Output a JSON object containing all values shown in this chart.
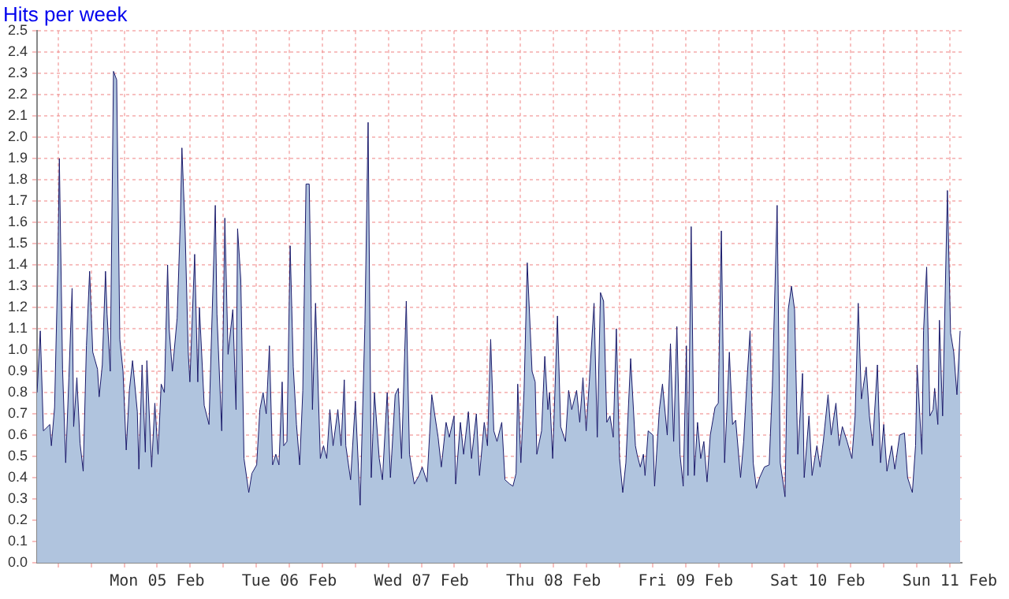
{
  "chart_data": {
    "type": "area",
    "title": "Hits per week",
    "color": "#b0c4de",
    "grid": true,
    "legend": false,
    "xlim": [
      "--02-04T14:10",
      "--02-11T14:10"
    ],
    "xticks": [
      {
        "value": "--02-04T18:00",
        "label": null
      },
      {
        "value": "--02-05T00:00",
        "label": null
      },
      {
        "value": "--02-05T06:00",
        "label": null
      },
      {
        "value": "--02-05T12:00",
        "label": "Mon 05 Feb"
      },
      {
        "value": "--02-05T18:00",
        "label": null
      },
      {
        "value": "--02-06T00:00",
        "label": null
      },
      {
        "value": "--02-06T06:00",
        "label": null
      },
      {
        "value": "--02-06T12:00",
        "label": "Tue 06 Feb"
      },
      {
        "value": "--02-06T18:00",
        "label": null
      },
      {
        "value": "--02-07T00:00",
        "label": null
      },
      {
        "value": "--02-07T06:00",
        "label": null
      },
      {
        "value": "--02-07T12:00",
        "label": "Wed 07 Feb"
      },
      {
        "value": "--02-07T18:00",
        "label": null
      },
      {
        "value": "--02-08T00:00",
        "label": null
      },
      {
        "value": "--02-08T06:00",
        "label": null
      },
      {
        "value": "--02-08T12:00",
        "label": "Thu 08 Feb"
      },
      {
        "value": "--02-08T18:00",
        "label": null
      },
      {
        "value": "--02-09T00:00",
        "label": null
      },
      {
        "value": "--02-09T06:00",
        "label": null
      },
      {
        "value": "--02-09T12:00",
        "label": "Fri 09 Feb"
      },
      {
        "value": "--02-09T18:00",
        "label": null
      },
      {
        "value": "--02-10T00:00",
        "label": null
      },
      {
        "value": "--02-10T06:00",
        "label": null
      },
      {
        "value": "--02-10T12:00",
        "label": "Sat 10 Feb"
      },
      {
        "value": "--02-10T18:00",
        "label": null
      },
      {
        "value": "--02-11T00:00",
        "label": null
      },
      {
        "value": "--02-11T06:00",
        "label": null
      },
      {
        "value": "--02-11T12:00",
        "label": "Sun 11 Feb"
      }
    ],
    "ylim": [
      0,
      2.5
    ],
    "yticks": [
      {
        "value": 0,
        "label": "0.0"
      },
      {
        "value": 0.1,
        "label": "0.1"
      },
      {
        "value": 0.2,
        "label": "0.2"
      },
      {
        "value": 0.3,
        "label": "0.3"
      },
      {
        "value": 0.4,
        "label": "0.4"
      },
      {
        "value": 0.5,
        "label": "0.5"
      },
      {
        "value": 0.6,
        "label": "0.6"
      },
      {
        "value": 0.7,
        "label": "0.7"
      },
      {
        "value": 0.8,
        "label": "0.8"
      },
      {
        "value": 0.9,
        "label": "0.9"
      },
      {
        "value": 1,
        "label": "1.0"
      },
      {
        "value": 1.1,
        "label": "1.1"
      },
      {
        "value": 1.2,
        "label": "1.2"
      },
      {
        "value": 1.3,
        "label": "1.3"
      },
      {
        "value": 1.4,
        "label": "1.4"
      },
      {
        "value": 1.5,
        "label": "1.5"
      },
      {
        "value": 1.6,
        "label": "1.6"
      },
      {
        "value": 1.7,
        "label": "1.7"
      },
      {
        "value": 1.8,
        "label": "1.8"
      },
      {
        "value": 1.9,
        "label": "1.9"
      },
      {
        "value": 2,
        "label": "2.0"
      },
      {
        "value": 2.1,
        "label": "2.1"
      },
      {
        "value": 2.2,
        "label": "2.2"
      },
      {
        "value": 2.3,
        "label": "2.3"
      },
      {
        "value": 2.4,
        "label": "2.4"
      },
      {
        "value": 2.5,
        "label": "2.5"
      }
    ],
    "x": [
      "--02-04T14:10",
      "--02-04T14:45",
      "--02-04T15:19",
      "--02-04T16:29",
      "--02-04T16:46",
      "--02-04T17:21",
      "--02-04T17:56",
      "--02-04T18:13",
      "--02-04T18:48",
      "--02-04T19:22",
      "--02-04T19:57",
      "--02-04T20:32",
      "--02-04T20:49",
      "--02-04T21:24",
      "--02-04T21:59",
      "--02-04T22:33",
      "--02-04T23:08",
      "--02-04T23:43",
      "--02-05T00:17",
      "--02-05T01:09",
      "--02-05T01:27",
      "--02-05T02:01",
      "--02-05T02:36",
      "--02-05T02:53",
      "--02-05T03:28",
      "--02-05T04:03",
      "--02-05T04:38",
      "--02-05T05:12",
      "--02-05T05:47",
      "--02-05T06:22",
      "--02-05T06:56",
      "--02-05T07:31",
      "--02-05T08:23",
      "--02-05T08:40",
      "--02-05T09:15",
      "--02-05T09:50",
      "--02-05T10:07",
      "--02-05T10:59",
      "--02-05T11:34",
      "--02-05T12:09",
      "--02-05T12:43",
      "--02-05T13:18",
      "--02-05T13:53",
      "--02-05T14:10",
      "--02-05T14:45",
      "--02-05T15:37",
      "--02-05T16:12",
      "--02-05T16:29",
      "--02-05T17:04",
      "--02-05T17:38",
      "--02-05T17:56",
      "--02-05T18:48",
      "--02-05T19:22",
      "--02-05T19:40",
      "--02-05T20:32",
      "--02-05T21:24",
      "--02-05T22:33",
      "--02-05T22:51",
      "--02-05T23:43",
      "--02-06T00:17",
      "--02-06T00:52",
      "--02-06T01:44",
      "--02-06T02:19",
      "--02-06T02:36",
      "--02-06T03:11",
      "--02-06T03:46",
      "--02-06T04:38",
      "--02-06T05:12",
      "--02-06T06:04",
      "--02-06T06:39",
      "--02-06T07:14",
      "--02-06T07:48",
      "--02-06T08:23",
      "--02-06T08:58",
      "--02-06T09:33",
      "--02-06T10:07",
      "--02-06T10:42",
      "--02-06T10:59",
      "--02-06T11:34",
      "--02-06T12:09",
      "--02-06T12:43",
      "--02-06T13:18",
      "--02-06T13:53",
      "--02-06T14:27",
      "--02-06T15:02",
      "--02-06T15:37",
      "--02-06T15:54",
      "--02-06T16:12",
      "--02-06T16:46",
      "--02-06T17:38",
      "--02-06T18:13",
      "--02-06T18:48",
      "--02-06T19:22",
      "--02-06T19:57",
      "--02-06T20:49",
      "--02-06T21:24",
      "--02-06T21:59",
      "--02-06T22:16",
      "--02-06T23:08",
      "--02-07T00:00",
      "--02-07T00:52",
      "--02-07T01:44",
      "--02-07T02:19",
      "--02-07T02:53",
      "--02-07T03:28",
      "--02-07T04:20",
      "--02-07T04:55",
      "--02-07T05:47",
      "--02-07T06:22",
      "--02-07T07:14",
      "--02-07T07:48",
      "--02-07T08:23",
      "--02-07T09:15",
      "--02-07T09:50",
      "--02-07T10:42",
      "--02-07T11:34",
      "--02-07T12:09",
      "--02-07T13:01",
      "--02-07T13:53",
      "--02-07T15:02",
      "--02-07T15:37",
      "--02-07T16:29",
      "--02-07T17:04",
      "--02-07T17:56",
      "--02-07T18:13",
      "--02-07T19:05",
      "--02-07T19:40",
      "--02-07T20:32",
      "--02-07T21:06",
      "--02-07T21:59",
      "--02-07T22:33",
      "--02-07T23:25",
      "--02-08T00:00",
      "--02-08T00:35",
      "--02-08T01:09",
      "--02-08T01:44",
      "--02-08T02:36",
      "--02-08T03:11",
      "--02-08T04:03",
      "--02-08T04:38",
      "--02-08T05:12",
      "--02-08T05:30",
      "--02-08T06:04",
      "--02-08T06:39",
      "--02-08T07:14",
      "--02-08T08:06",
      "--02-08T08:40",
      "--02-08T08:58",
      "--02-08T09:50",
      "--02-08T10:25",
      "--02-08T10:59",
      "--02-08T11:17",
      "--02-08T11:51",
      "--02-08T12:43",
      "--02-08T13:18",
      "--02-08T14:10",
      "--02-08T14:45",
      "--02-08T15:19",
      "--02-08T16:12",
      "--02-08T16:46",
      "--02-08T17:21",
      "--02-08T17:56",
      "--02-08T18:30",
      "--02-08T19:22",
      "--02-08T19:57",
      "--02-08T20:32",
      "--02-08T21:06",
      "--02-08T21:41",
      "--02-08T22:16",
      "--02-08T22:51",
      "--02-08T23:25",
      "--02-09T00:00",
      "--02-09T00:35",
      "--02-09T01:09",
      "--02-09T02:01",
      "--02-09T02:53",
      "--02-09T03:11",
      "--02-09T03:46",
      "--02-09T04:20",
      "--02-09T04:38",
      "--02-09T05:12",
      "--02-09T06:04",
      "--02-09T06:22",
      "--02-09T07:14",
      "--02-09T07:48",
      "--02-09T08:40",
      "--02-09T09:15",
      "--02-09T09:50",
      "--02-09T10:25",
      "--02-09T10:59",
      "--02-09T11:34",
      "--02-09T12:09",
      "--02-09T12:26",
      "--02-09T13:01",
      "--02-09T13:35",
      "--02-09T14:10",
      "--02-09T14:45",
      "--02-09T15:19",
      "--02-09T15:54",
      "--02-09T16:29",
      "--02-09T17:21",
      "--02-09T17:56",
      "--02-09T18:30",
      "--02-09T19:05",
      "--02-09T19:57",
      "--02-09T20:32",
      "--02-09T21:06",
      "--02-09T21:59",
      "--02-09T22:33",
      "--02-09T23:08",
      "--02-09T23:43",
      "--02-10T00:17",
      "--02-10T00:52",
      "--02-10T01:27",
      "--02-10T02:19",
      "--02-10T03:11",
      "--02-10T03:46",
      "--02-10T04:38",
      "--02-10T05:12",
      "--02-10T06:04",
      "--02-10T06:39",
      "--02-10T07:14",
      "--02-10T07:48",
      "--02-10T08:23",
      "--02-10T09:15",
      "--02-10T09:33",
      "--02-10T10:25",
      "--02-10T10:59",
      "--02-10T11:51",
      "--02-10T12:26",
      "--02-10T13:01",
      "--02-10T13:53",
      "--02-10T14:27",
      "--02-10T15:19",
      "--02-10T15:54",
      "--02-10T16:29",
      "--02-10T17:21",
      "--02-10T18:13",
      "--02-10T18:48",
      "--02-10T19:22",
      "--02-10T19:57",
      "--02-10T20:49",
      "--02-10T21:24",
      "--02-10T21:59",
      "--02-10T22:51",
      "--02-10T23:25",
      "--02-11T00:00",
      "--02-11T00:35",
      "--02-11T01:27",
      "--02-11T02:01",
      "--02-11T02:53",
      "--02-11T03:46",
      "--02-11T04:20",
      "--02-11T05:12",
      "--02-11T05:47",
      "--02-11T06:04",
      "--02-11T06:56",
      "--02-11T07:14",
      "--02-11T07:48",
      "--02-11T08:23",
      "--02-11T08:58",
      "--02-11T09:15",
      "--02-11T09:50",
      "--02-11T10:07",
      "--02-11T10:42",
      "--02-11T11:34",
      "--02-11T12:09",
      "--02-11T12:43",
      "--02-11T13:18",
      "--02-11T13:53"
    ],
    "values": [
      0.8,
      1.09,
      0.62,
      0.65,
      0.55,
      0.73,
      1.39,
      1.9,
      0.91,
      0.47,
      0.87,
      1.29,
      0.64,
      0.87,
      0.56,
      0.43,
      1.02,
      1.37,
      0.99,
      0.91,
      0.78,
      0.93,
      1.37,
      1.17,
      0.9,
      2.31,
      2.27,
      1.05,
      0.9,
      0.53,
      0.81,
      0.95,
      0.71,
      0.44,
      0.93,
      0.52,
      0.95,
      0.45,
      0.75,
      0.51,
      0.84,
      0.8,
      1.4,
      1.1,
      0.9,
      1.15,
      1.61,
      1.95,
      1.56,
      0.99,
      0.85,
      1.45,
      0.85,
      1.2,
      0.74,
      0.65,
      1.68,
      1.17,
      0.62,
      1.62,
      0.98,
      1.19,
      0.72,
      1.57,
      1.33,
      0.49,
      0.33,
      0.42,
      0.46,
      0.72,
      0.8,
      0.7,
      1.02,
      0.46,
      0.51,
      0.46,
      0.85,
      0.55,
      0.57,
      1.49,
      0.92,
      0.65,
      0.46,
      0.81,
      1.78,
      1.78,
      1.33,
      0.72,
      1.22,
      0.49,
      0.55,
      0.49,
      0.72,
      0.55,
      0.72,
      0.55,
      0.86,
      0.55,
      0.39,
      0.76,
      0.27,
      1.12,
      2.07,
      0.4,
      0.8,
      0.49,
      0.39,
      0.8,
      0.4,
      0.79,
      0.82,
      0.49,
      1.23,
      0.51,
      0.37,
      0.41,
      0.45,
      0.38,
      0.79,
      0.59,
      0.45,
      0.66,
      0.59,
      0.69,
      0.37,
      0.66,
      0.51,
      0.71,
      0.49,
      0.7,
      0.41,
      0.66,
      0.55,
      1.05,
      0.62,
      0.57,
      0.66,
      0.39,
      0.37,
      0.36,
      0.42,
      0.84,
      0.47,
      0.81,
      1.41,
      0.9,
      0.85,
      0.51,
      0.62,
      0.97,
      0.72,
      0.8,
      0.49,
      1.16,
      0.64,
      0.57,
      0.81,
      0.72,
      0.81,
      0.66,
      0.87,
      0.62,
      0.85,
      1.22,
      0.59,
      1.27,
      1.23,
      0.66,
      0.69,
      0.59,
      1.1,
      0.49,
      0.33,
      0.47,
      0.96,
      0.55,
      0.51,
      0.45,
      0.51,
      0.41,
      0.62,
      0.6,
      0.36,
      0.72,
      0.84,
      0.6,
      1.03,
      0.57,
      1.11,
      0.51,
      0.36,
      1.02,
      0.41,
      1.58,
      0.41,
      0.66,
      0.49,
      0.57,
      0.38,
      0.6,
      0.73,
      0.75,
      1.56,
      0.47,
      0.99,
      0.65,
      0.67,
      0.4,
      0.57,
      0.85,
      1.09,
      0.47,
      0.35,
      0.4,
      0.45,
      0.46,
      0.83,
      1.68,
      0.47,
      0.31,
      1.19,
      1.3,
      1.19,
      0.51,
      0.89,
      0.4,
      0.69,
      0.41,
      0.55,
      0.45,
      0.57,
      0.79,
      0.6,
      0.75,
      0.55,
      0.64,
      0.57,
      0.49,
      0.69,
      1.22,
      0.77,
      0.92,
      0.69,
      0.55,
      0.93,
      0.47,
      0.65,
      0.43,
      0.55,
      0.44,
      0.6,
      0.61,
      0.4,
      0.33,
      0.55,
      0.93,
      0.51,
      1.09,
      1.39,
      0.69,
      0.72,
      0.82,
      0.65,
      1.14,
      0.69,
      1.75,
      1.08,
      0.99,
      0.79,
      1.09
    ]
  }
}
